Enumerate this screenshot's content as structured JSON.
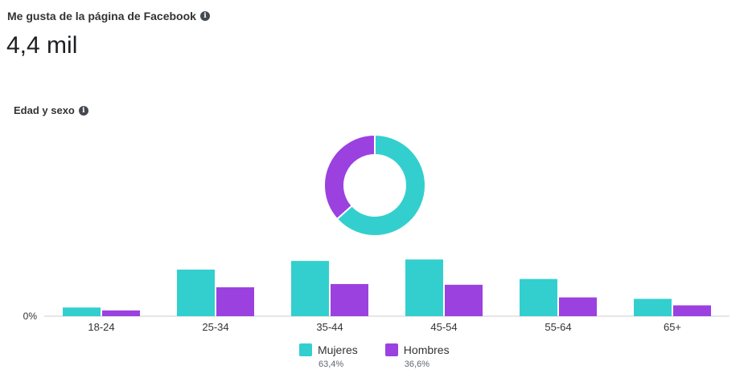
{
  "header": {
    "title": "Me gusta de la página de Facebook",
    "value": "4,4 mil"
  },
  "breakdown": {
    "title": "Edad y sexo"
  },
  "colors": {
    "mujeres": "#33cfcf",
    "hombres": "#9b41e0"
  },
  "legend": {
    "mujeres_label": "Mujeres",
    "mujeres_pct": "63,4%",
    "hombres_label": "Hombres",
    "hombres_pct": "36,6%"
  },
  "chart_data": [
    {
      "type": "pie",
      "donut": true,
      "slices": [
        {
          "name": "Mujeres",
          "value": 63.4
        },
        {
          "name": "Hombres",
          "value": 36.6
        }
      ]
    },
    {
      "type": "bar",
      "categories": [
        "18-24",
        "25-34",
        "35-44",
        "45-54",
        "55-64",
        "65+"
      ],
      "series": [
        {
          "name": "Mujeres",
          "values": [
            2.4,
            12.9,
            15.3,
            15.7,
            10.3,
            4.8
          ]
        },
        {
          "name": "Hombres",
          "values": [
            1.6,
            8.0,
            8.9,
            8.7,
            5.2,
            3.0
          ]
        }
      ],
      "ytick_label": "0%",
      "ylim": [
        0,
        20
      ]
    }
  ]
}
